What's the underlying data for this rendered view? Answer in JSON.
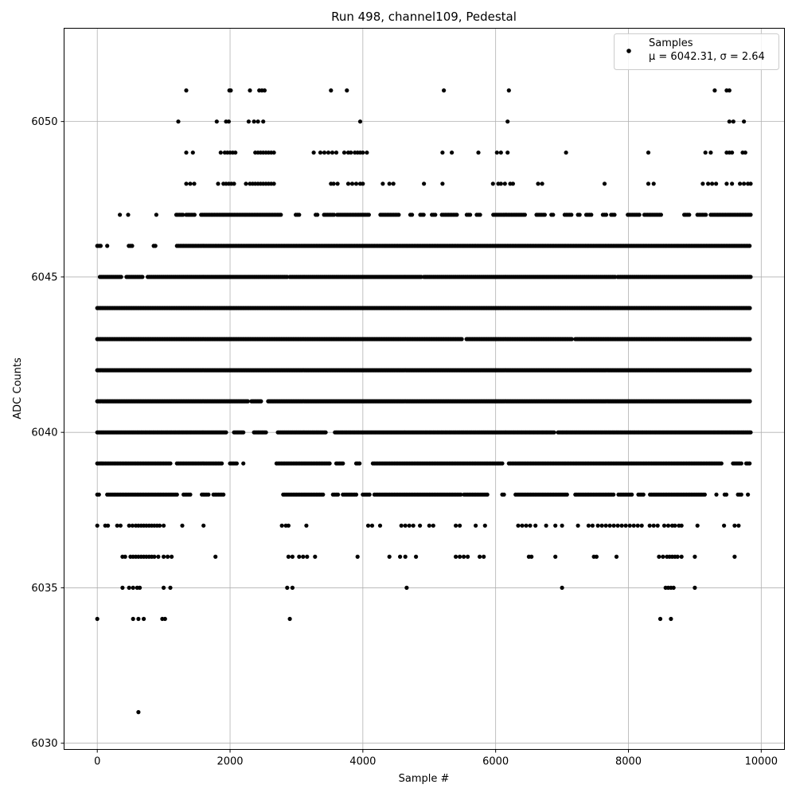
{
  "chart_data": {
    "type": "scatter",
    "title": "Run 498, channel109, Pedestal",
    "xlabel": "Sample #",
    "ylabel": "ADC Counts",
    "xlim": [
      -500,
      10350
    ],
    "ylim": [
      6029.8,
      6053
    ],
    "xticks": [
      0,
      2000,
      4000,
      6000,
      8000,
      10000
    ],
    "yticks": [
      6030,
      6035,
      6040,
      6045,
      6050
    ],
    "grid": true,
    "legend": {
      "position": "top-right",
      "label": "Samples",
      "stats": "μ = 6042.31, σ = 2.64"
    },
    "series": [
      {
        "name": "Samples",
        "color": "#000000",
        "marker": "circle",
        "bands": [
          {
            "y": 6037,
            "x": [
              0,
              120,
              160,
              300,
              350,
              480,
              530,
              580,
              620,
              660,
              700,
              740,
              780,
              820,
              860,
              900,
              940,
              1000,
              1280,
              1600,
              2780,
              2840,
              2880,
              3150,
              4080,
              4140,
              4260,
              4580,
              4640,
              4700,
              4760,
              4860,
              5000,
              5060,
              5400,
              5460,
              5700,
              5840,
              6340,
              6400,
              6460,
              6520,
              6600,
              6760,
              6900,
              7000,
              7240,
              7400,
              7460,
              7540,
              7600,
              7660,
              7720,
              7780,
              7840,
              7900,
              7960,
              8020,
              8080,
              8140,
              8200,
              8320,
              8380,
              8440,
              8540,
              8600,
              8660,
              8700,
              8760,
              8800,
              9040,
              9440,
              9600,
              9660
            ]
          },
          {
            "y": 6036,
            "x": [
              380,
              420,
              500,
              540,
              580,
              620,
              660,
              700,
              740,
              780,
              820,
              860,
              920,
              1000,
              1060,
              1120,
              1780,
              2880,
              2940,
              3040,
              3100,
              3160,
              3280,
              3920,
              4400,
              4560,
              4640,
              4800,
              5400,
              5460,
              5520,
              5580,
              5760,
              5820,
              6500,
              6540,
              6900,
              7480,
              7520,
              7820,
              8460,
              8520,
              8580,
              8620,
              8660,
              8700,
              8740,
              8800,
              9000,
              9600
            ]
          },
          {
            "y": 6035,
            "x": [
              380,
              480,
              540,
              600,
              640,
              1000,
              1100,
              2860,
              2940,
              4660,
              7000,
              8560,
              8600,
              8640,
              8680,
              9000
            ]
          },
          {
            "y": 6034,
            "x": [
              0,
              540,
              620,
              700,
              980,
              1020,
              2900,
              8480,
              8640
            ]
          },
          {
            "y": 6031,
            "x": [
              620
            ]
          },
          {
            "y": 6051,
            "x": [
              1340,
              1990,
              2010,
              2300,
              2440,
              2480,
              2520,
              3520,
              3760,
              5220,
              6200,
              9300,
              9480,
              9520
            ]
          },
          {
            "y": 6050,
            "x": [
              1220,
              1800,
              1940,
              1980,
              2280,
              2360,
              2420,
              2500,
              3960,
              6180,
              9520,
              9580,
              9740
            ]
          },
          {
            "y": 6049,
            "x": [
              1340,
              1440,
              1860,
              1920,
              1960,
              2000,
              2040,
              2080,
              2380,
              2420,
              2460,
              2500,
              2540,
              2580,
              2620,
              2660,
              3260,
              3360,
              3420,
              3480,
              3540,
              3600,
              3720,
              3780,
              3820,
              3880,
              3920,
              3960,
              4000,
              4060,
              5200,
              5340,
              5740,
              6020,
              6080,
              6180,
              7060,
              8300,
              9160,
              9240,
              9480,
              9520,
              9560,
              9720,
              9760
            ]
          },
          {
            "y": 6048,
            "x": [
              1340,
              1400,
              1460,
              1820,
              1900,
              1940,
              1980,
              2020,
              2060,
              2240,
              2300,
              2340,
              2380,
              2420,
              2460,
              2500,
              2540,
              2580,
              2620,
              2660,
              3520,
              3560,
              3620,
              3780,
              3840,
              3900,
              3960,
              4000,
              4300,
              4400,
              4460,
              4920,
              5200,
              5960,
              6040,
              6080,
              6140,
              6220,
              6260,
              6640,
              6700,
              7640,
              8300,
              8380,
              9120,
              9200,
              9260,
              9320,
              9480,
              9560,
              9680,
              9740,
              9800,
              9840
            ]
          }
        ],
        "dense_bands": [
          {
            "y": 6046,
            "from": 0,
            "to": 9840,
            "step": 25,
            "gaps": [
              [
                60,
                150
              ],
              [
                170,
                470
              ],
              [
                540,
                830
              ],
              [
                890,
                1180
              ]
            ]
          },
          {
            "y": 6047,
            "from": 340,
            "to": 9840,
            "step": 25,
            "gaps": [
              [
                360,
                450
              ],
              [
                470,
                870
              ],
              [
                890,
                1170
              ],
              [
                1290,
                1330
              ],
              [
                1470,
                1550
              ],
              [
                2780,
                2980
              ],
              [
                3040,
                3280
              ],
              [
                3320,
                3400
              ],
              [
                3570,
                3600
              ],
              [
                4100,
                4260
              ],
              [
                4560,
                4700
              ],
              [
                4760,
                4860
              ],
              [
                4920,
                5040
              ],
              [
                5100,
                5180
              ],
              [
                5420,
                5560
              ],
              [
                5620,
                5700
              ],
              [
                5780,
                5960
              ],
              [
                6460,
                6600
              ],
              [
                6740,
                6840
              ],
              [
                6880,
                7040
              ],
              [
                7160,
                7240
              ],
              [
                7280,
                7360
              ],
              [
                7460,
                7600
              ],
              [
                7680,
                7740
              ],
              [
                7800,
                7980
              ],
              [
                8180,
                8240
              ],
              [
                8500,
                8820
              ],
              [
                8920,
                9040
              ],
              [
                9180,
                9240
              ]
            ]
          },
          {
            "y": 6045,
            "from": 40,
            "to": 9840,
            "step": 20,
            "gaps": [
              [
                360,
                440
              ],
              [
                680,
                760
              ],
              [
                2860,
                2900
              ],
              [
                4880,
                4920
              ],
              [
                7800,
                7840
              ]
            ]
          },
          {
            "y": 6044,
            "from": 0,
            "to": 9840,
            "step": 18,
            "gaps": []
          },
          {
            "y": 6043,
            "from": 0,
            "to": 9840,
            "step": 18,
            "gaps": [
              [
                5500,
                5560
              ],
              [
                7160,
                7200
              ]
            ]
          },
          {
            "y": 6042,
            "from": 0,
            "to": 9840,
            "step": 18,
            "gaps": []
          },
          {
            "y": 6041,
            "from": 0,
            "to": 9840,
            "step": 18,
            "gaps": [
              [
                2280,
                2320
              ],
              [
                2480,
                2560
              ]
            ]
          },
          {
            "y": 6040,
            "from": 0,
            "to": 9840,
            "step": 20,
            "gaps": [
              [
                1940,
                2060
              ],
              [
                2200,
                2360
              ],
              [
                2540,
                2720
              ],
              [
                3440,
                3580
              ],
              [
                6880,
                6940
              ]
            ]
          },
          {
            "y": 6039,
            "from": 0,
            "to": 9840,
            "step": 25,
            "gaps": [
              [
                1100,
                1200
              ],
              [
                1880,
                2000
              ],
              [
                2100,
                2180
              ],
              [
                2220,
                2700
              ],
              [
                3500,
                3580
              ],
              [
                3700,
                3880
              ],
              [
                3960,
                4140
              ],
              [
                6100,
                6180
              ],
              [
                9420,
                9560
              ],
              [
                9700,
                9760
              ]
            ]
          },
          {
            "y": 6038,
            "from": 0,
            "to": 9800,
            "step": 25,
            "gaps": [
              [
                40,
                140
              ],
              [
                1220,
                1300
              ],
              [
                1400,
                1560
              ],
              [
                1680,
                1740
              ],
              [
                1900,
                2780
              ],
              [
                3420,
                3540
              ],
              [
                3640,
                3680
              ],
              [
                3900,
                3980
              ],
              [
                4120,
                4160
              ],
              [
                5480,
                5520
              ],
              [
                5880,
                6080
              ],
              [
                6140,
                6280
              ],
              [
                7080,
                7200
              ],
              [
                7780,
                7840
              ],
              [
                8060,
                8140
              ],
              [
                8240,
                8320
              ],
              [
                9160,
                9320
              ],
              [
                9340,
                9440
              ],
              [
                9480,
                9640
              ],
              [
                9700,
                9800
              ]
            ]
          }
        ]
      }
    ]
  }
}
